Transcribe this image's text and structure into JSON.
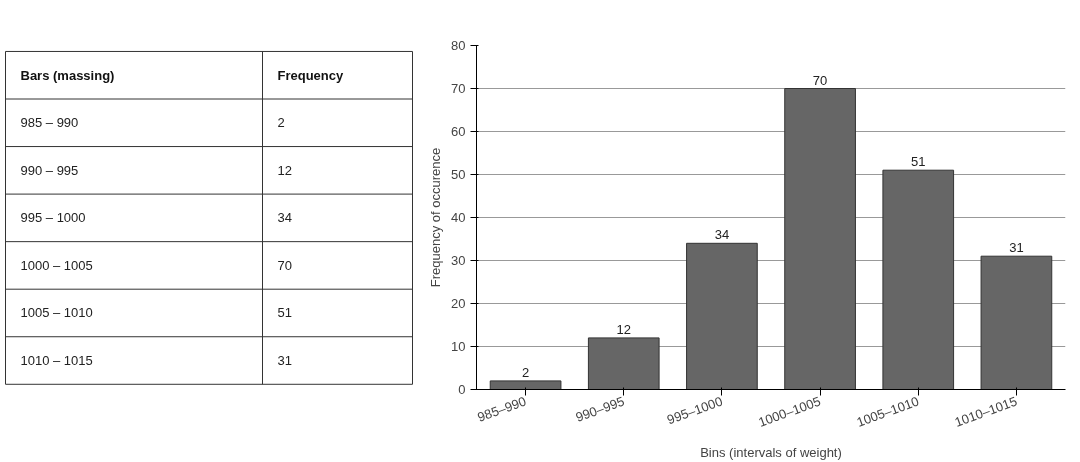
{
  "chart_data": [
    {
      "type": "other",
      "annotations": [
        "Bars (massing)",
        "Frequency"
      ],
      "categories": [
        "985 – 990",
        "990 – 995",
        "995 – 1000",
        "1000 – 1005",
        "1005 – 1010",
        "1010 – 1015"
      ],
      "values": [
        2,
        12,
        34,
        70,
        51,
        31
      ],
      "data_labels": true
    },
    {
      "type": "bar",
      "categories": [
        "985–990",
        "990–995",
        "995–1000",
        "1000–1005",
        "1005–1010",
        "1010–1015"
      ],
      "values": [
        2,
        12,
        34,
        70,
        51,
        31
      ],
      "color": "#666666",
      "ylim": [
        0,
        80
      ],
      "yticks": [
        0,
        10,
        20,
        30,
        40,
        50,
        60,
        70,
        80
      ],
      "grid": "y",
      "data_labels": true,
      "xlabel": "Bins (intervals of weight)",
      "ylabel": "Frequency of occurence"
    }
  ]
}
